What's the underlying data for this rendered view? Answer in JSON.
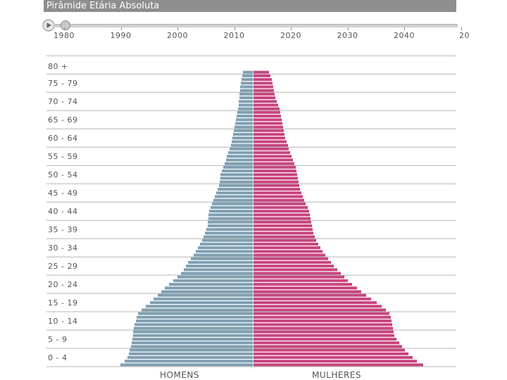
{
  "title": "Pirâmide Etária Absoluta",
  "timeline": {
    "years": [
      "1980",
      "1990",
      "2000",
      "2010",
      "2020",
      "2030",
      "2040",
      "20"
    ]
  },
  "labels": {
    "men": "HOMENS",
    "women": "MULHERES"
  },
  "colors": {
    "men": "#7f9fb2",
    "women": "#c8457e",
    "grid": "#b5b5b5",
    "axis_text": "#555555"
  },
  "chart_data": {
    "type": "bar",
    "orientation": "horizontal-pyramid",
    "age_groups": [
      "0 - 4",
      "5 - 9",
      "10 - 14",
      "15 - 19",
      "20 - 24",
      "25 - 29",
      "30 - 34",
      "35 - 39",
      "40 - 44",
      "45 - 49",
      "50 - 54",
      "55 - 59",
      "60 - 64",
      "65 - 69",
      "70 - 74",
      "75 - 79",
      "80 +"
    ],
    "series": [
      {
        "name": "HOMENS",
        "side": "left",
        "values": [
          188,
          182,
          178,
          176,
          175,
          173,
          172,
          171,
          170,
          170,
          169,
          168,
          166,
          165,
          163,
          158,
          152,
          146,
          141,
          135,
          130,
          125,
          119,
          113,
          107,
          102,
          98,
          95,
          92,
          88,
          84,
          81,
          78,
          75,
          72,
          70,
          68,
          66,
          64,
          64,
          63,
          63,
          62,
          60,
          58,
          56,
          54,
          52,
          50,
          48,
          47,
          46,
          46,
          44,
          42,
          40,
          38,
          37,
          35,
          33,
          31,
          30,
          29,
          28,
          27,
          26,
          25,
          24,
          23,
          22,
          21,
          20,
          20,
          19,
          19,
          18,
          18,
          17,
          16,
          15,
          14
        ]
      },
      {
        "name": "MULHERES",
        "side": "right",
        "values": [
          241,
          232,
          226,
          220,
          215,
          211,
          207,
          203,
          200,
          199,
          198,
          197,
          196,
          195,
          193,
          188,
          182,
          175,
          167,
          160,
          153,
          147,
          140,
          134,
          129,
          124,
          119,
          114,
          110,
          106,
          102,
          98,
          95,
          92,
          89,
          87,
          85,
          84,
          83,
          82,
          81,
          80,
          79,
          77,
          74,
          72,
          70,
          68,
          66,
          65,
          64,
          63,
          62,
          61,
          60,
          58,
          56,
          54,
          52,
          50,
          49,
          47,
          45,
          44,
          43,
          42,
          41,
          40,
          39,
          38,
          37,
          35,
          33,
          31,
          30,
          29,
          28,
          27,
          26,
          24,
          22
        ]
      }
    ],
    "single_years": 81
  }
}
